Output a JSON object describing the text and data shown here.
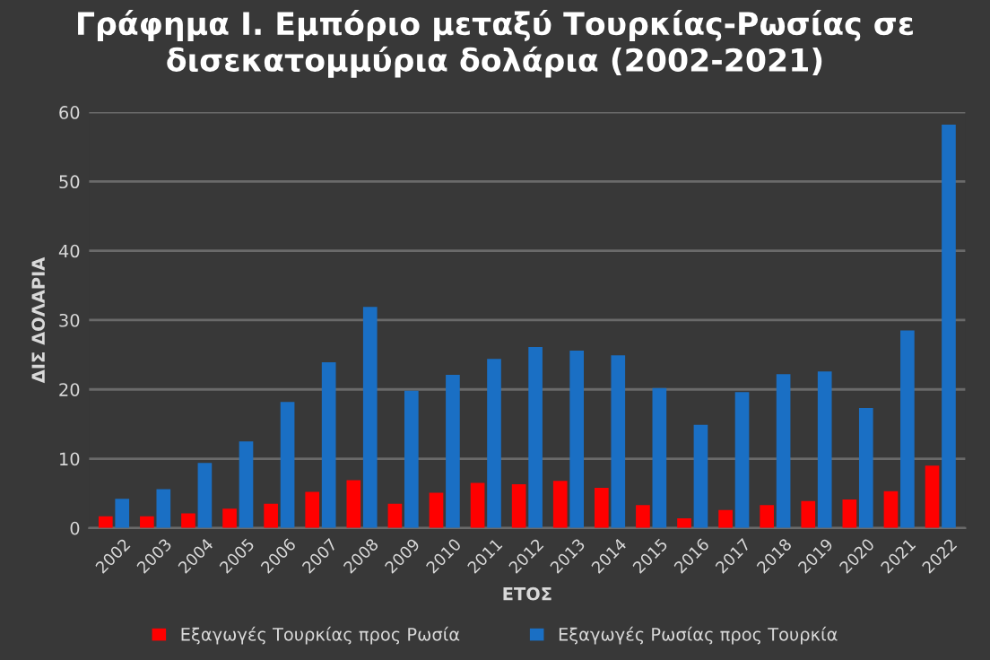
{
  "chart_data": {
    "type": "bar",
    "title": "Γράφημα Ι. Εμπόριο μεταξύ Τουρκίας-Ρωσίας σε δισεκατομμύρια δολάρια (2002-2021)",
    "xlabel": "ΕΤΟΣ",
    "ylabel": "ΔΙΣ ΔΟΛΑΡΙΑ",
    "categories": [
      "2002",
      "2003",
      "2004",
      "2005",
      "2006",
      "2007",
      "2008",
      "2009",
      "2010",
      "2011",
      "2012",
      "2013",
      "2014",
      "2015",
      "2016",
      "2017",
      "2018",
      "2019",
      "2020",
      "2021",
      "2022"
    ],
    "series": [
      {
        "name": "Εξαγωγές Τουρκίας προς Ρωσία",
        "color": "#ff0000",
        "values": [
          1.7,
          1.7,
          2.1,
          2.8,
          3.5,
          5.2,
          6.9,
          3.5,
          5.1,
          6.5,
          6.3,
          6.8,
          5.8,
          3.3,
          1.4,
          2.6,
          3.3,
          3.9,
          4.1,
          5.3,
          9.0
        ]
      },
      {
        "name": "Εξαγωγές Ρωσίας προς Τουρκία",
        "color": "#1a6fc4",
        "values": [
          4.2,
          5.6,
          9.4,
          12.5,
          18.2,
          23.9,
          31.9,
          19.8,
          22.1,
          24.4,
          26.1,
          25.6,
          24.9,
          20.2,
          14.9,
          19.6,
          22.2,
          22.6,
          17.3,
          28.5,
          58.2
        ]
      }
    ],
    "ylim": [
      0,
      60
    ],
    "yticks": [
      0,
      10,
      20,
      30,
      40,
      50,
      60
    ],
    "grid": "y",
    "legend": "bottom"
  }
}
